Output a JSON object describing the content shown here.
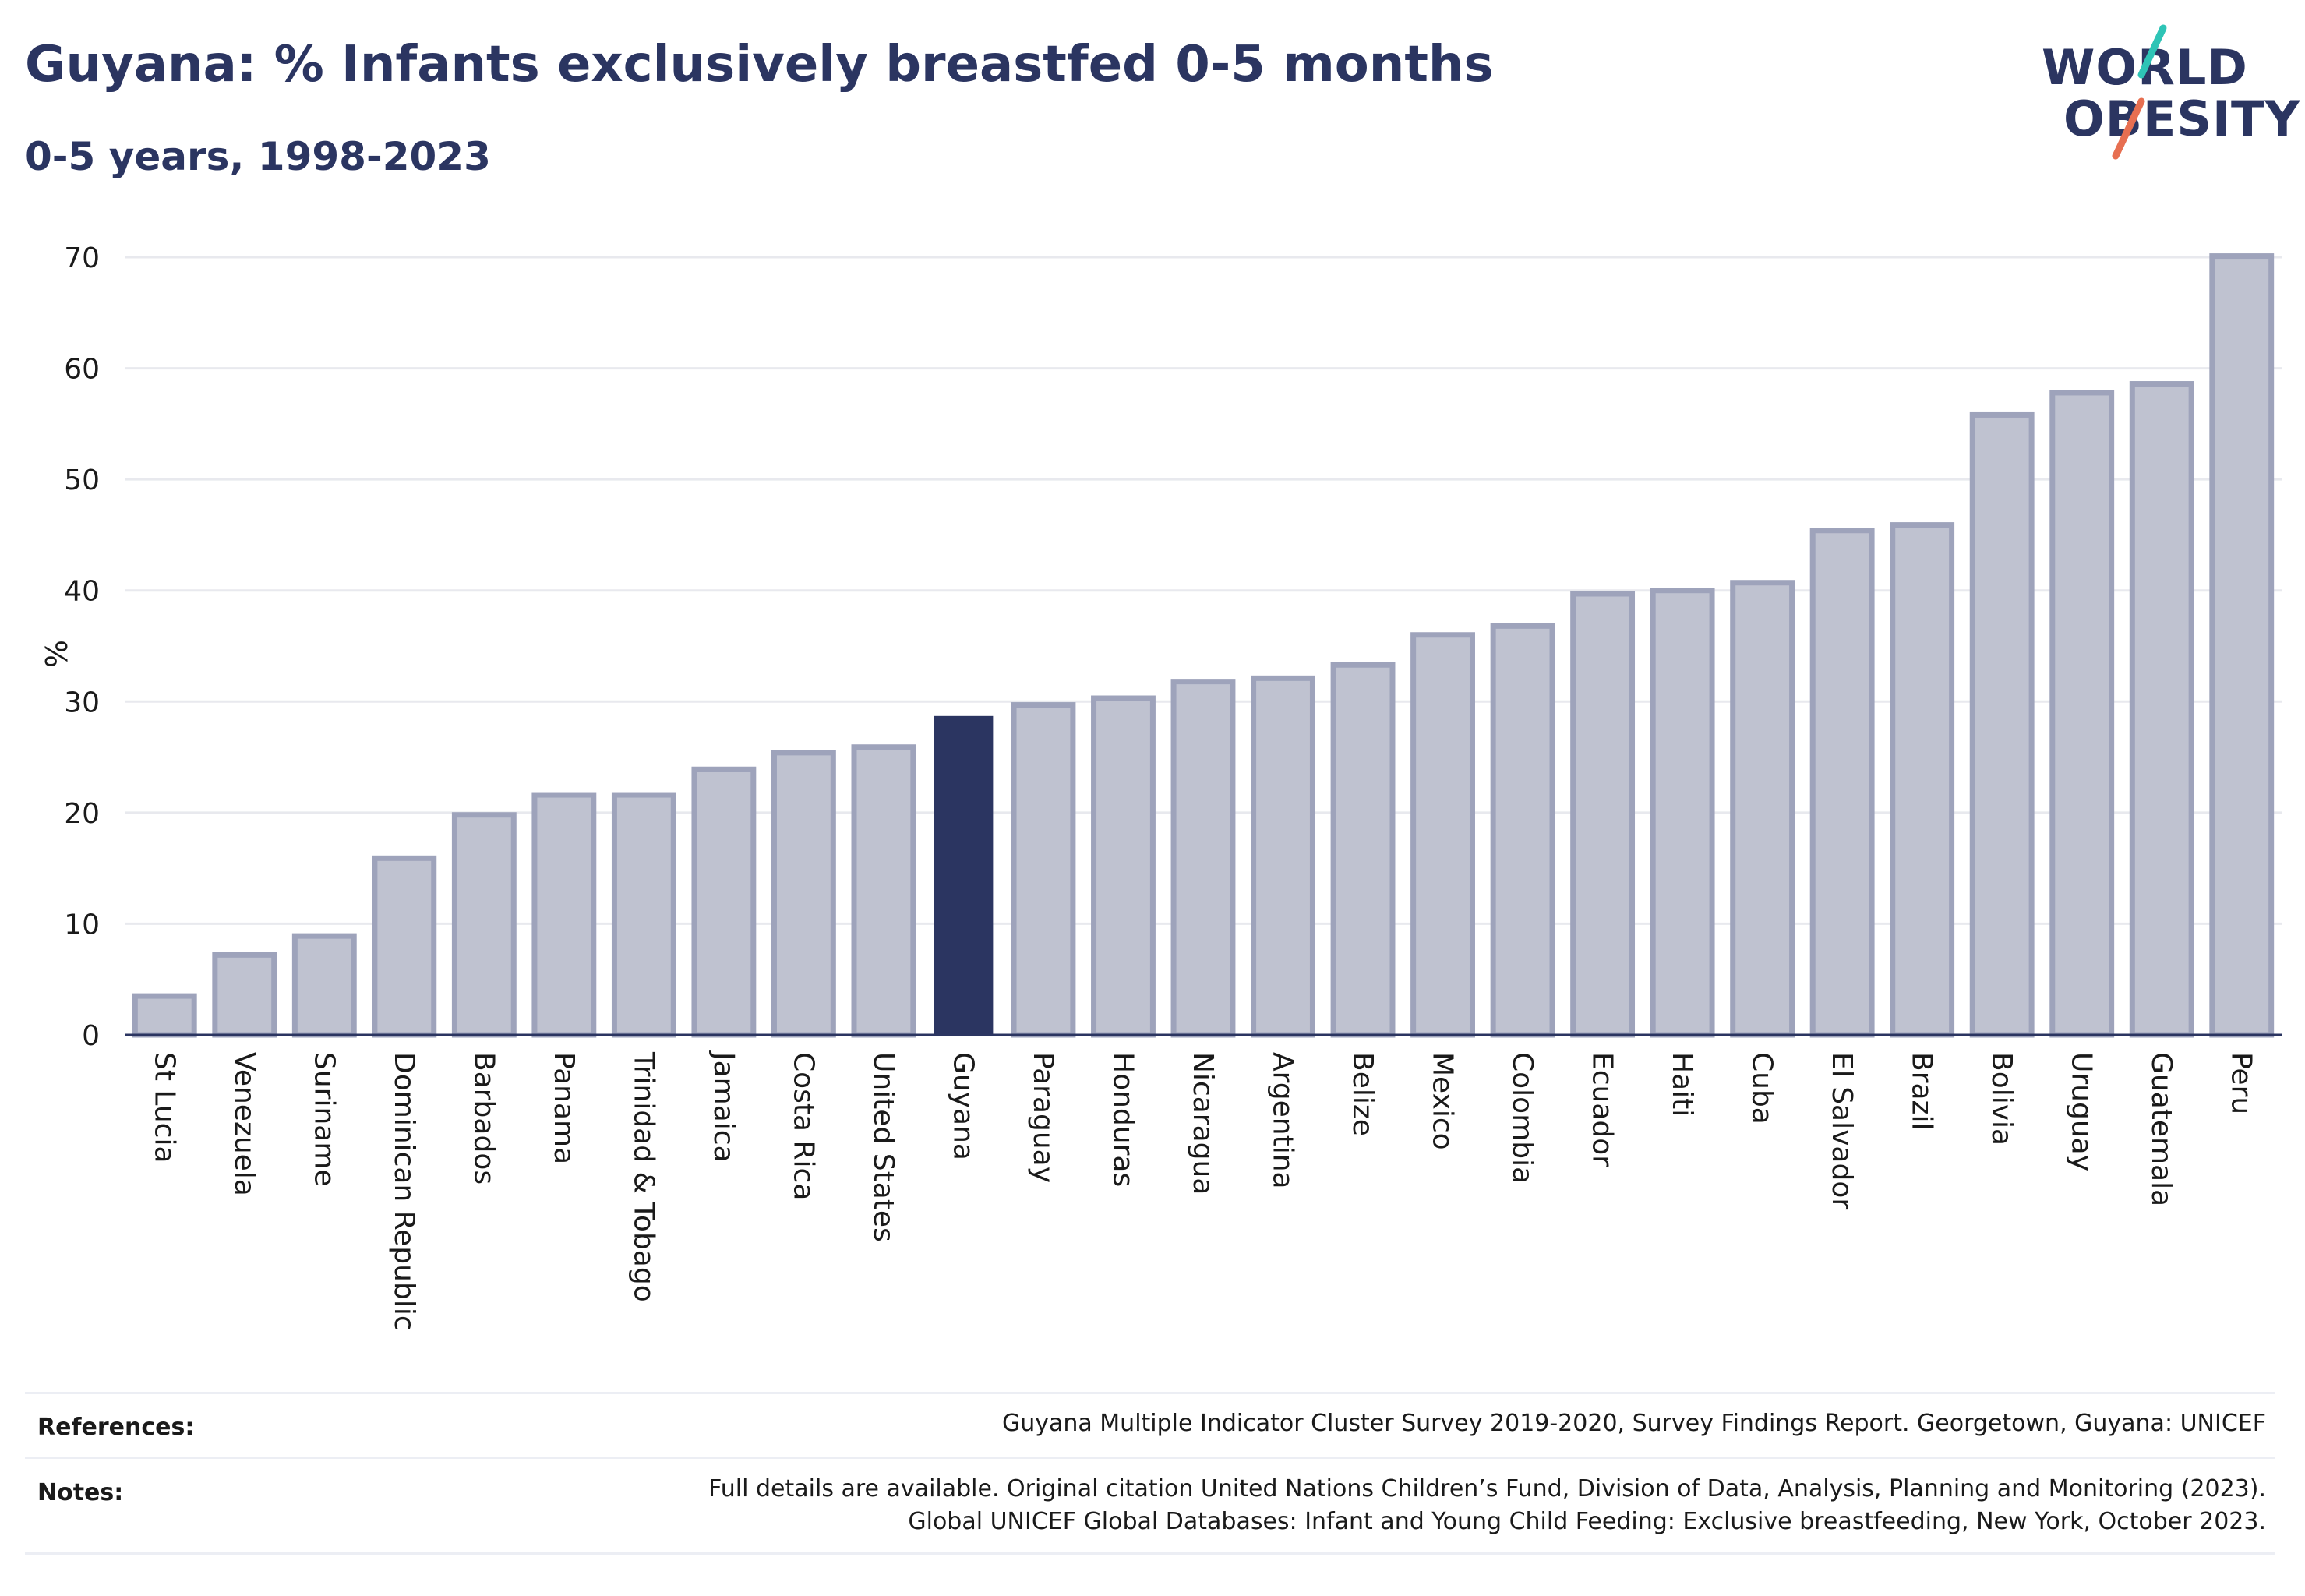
{
  "header": {
    "title": "Guyana: % Infants exclusively breastfed 0-5 months",
    "subtitle": "0-5 years, 1998-2023"
  },
  "logo": {
    "line1": "WORLD",
    "line2": "OBESITY",
    "slash_colors": [
      "#2ec4b6",
      "#e76f51"
    ]
  },
  "chart_data": {
    "type": "bar",
    "title": "Guyana: % Infants exclusively breastfed 0-5 months",
    "subtitle": "0-5 years, 1998-2023",
    "xlabel": "",
    "ylabel": "%",
    "ylim": [
      0,
      70
    ],
    "yticks": [
      0,
      10,
      20,
      30,
      40,
      50,
      60,
      70
    ],
    "grid": true,
    "highlight": "Guyana",
    "colors": {
      "bar": "#bfc2d0",
      "bar_edge": "#9ea3bb",
      "highlight": "#2b3561",
      "axis": "#2b3561",
      "grid": "#e8e9ee"
    },
    "categories": [
      "St Lucia",
      "Venezuela",
      "Suriname",
      "Dominican Republic",
      "Barbados",
      "Panama",
      "Trinidad & Tobago",
      "Jamaica",
      "Costa Rica",
      "United States",
      "Guyana",
      "Paraguay",
      "Honduras",
      "Nicaragua",
      "Argentina",
      "Belize",
      "Mexico",
      "Colombia",
      "Ecuador",
      "Haiti",
      "Cuba",
      "El Salvador",
      "Brazil",
      "Bolivia",
      "Uruguay",
      "Guatemala",
      "Peru"
    ],
    "values": [
      3.5,
      7.2,
      8.9,
      15.9,
      19.8,
      21.6,
      21.6,
      23.9,
      25.4,
      25.9,
      28.7,
      29.7,
      30.3,
      31.8,
      32.1,
      33.3,
      36.0,
      36.8,
      39.7,
      40.0,
      40.7,
      45.4,
      45.9,
      55.8,
      57.8,
      58.6,
      70.1
    ]
  },
  "footer": {
    "references_label": "References:",
    "references_text": "Guyana Multiple Indicator Cluster Survey 2019-2020, Survey Findings Report. Georgetown, Guyana: UNICEF",
    "notes_label": "Notes:",
    "notes_line1": "Full details are available. Original citation United Nations Children’s Fund, Division of Data, Analysis, Planning and Monitoring (2023).",
    "notes_line2": "Global UNICEF Global Databases: Infant and Young Child Feeding: Exclusive breastfeeding, New York, October 2023."
  }
}
